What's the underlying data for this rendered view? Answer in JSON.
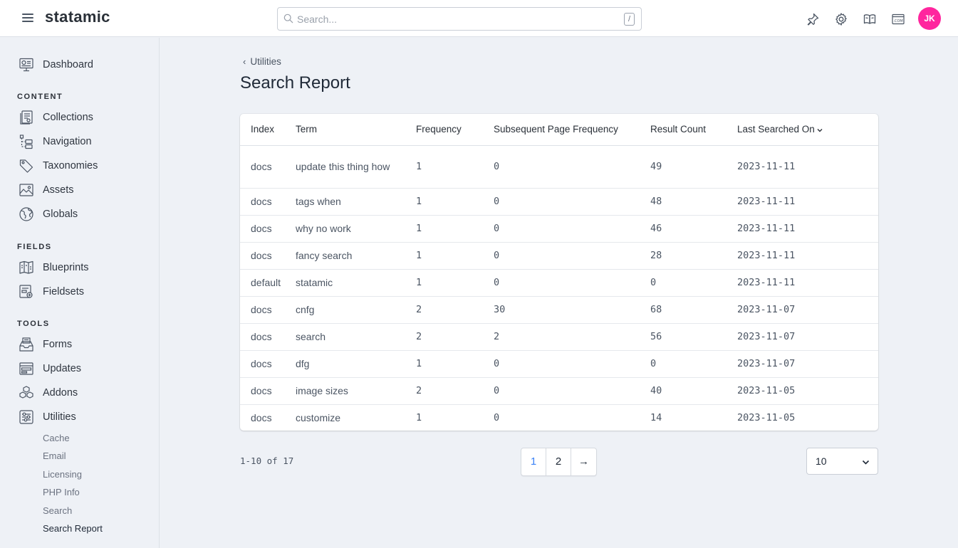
{
  "header": {
    "logo": "statamic",
    "search_placeholder": "Search...",
    "search_shortcut": "/",
    "avatar_initials": "JK",
    "avatar_color": "#ff269e",
    "icons": [
      "pin-icon",
      "gear-icon",
      "book-icon",
      "site-icon"
    ]
  },
  "sidebar": {
    "dashboard": "Dashboard",
    "sections": {
      "content": "CONTENT",
      "fields": "FIELDS",
      "tools": "TOOLS"
    },
    "content_items": [
      "Collections",
      "Navigation",
      "Taxonomies",
      "Assets",
      "Globals"
    ],
    "fields_items": [
      "Blueprints",
      "Fieldsets"
    ],
    "tools_items": [
      "Forms",
      "Updates",
      "Addons",
      "Utilities"
    ],
    "utilities_sub": [
      "Cache",
      "Email",
      "Licensing",
      "PHP Info",
      "Search",
      "Search Report"
    ],
    "active_sub": "Search Report"
  },
  "main": {
    "breadcrumb": "Utilities",
    "title": "Search Report",
    "columns": [
      "Index",
      "Term",
      "Frequency",
      "Subsequent Page Frequency",
      "Result Count",
      "Last Searched On"
    ],
    "sorted_column": "Last Searched On",
    "rows": [
      {
        "index": "docs",
        "term": "update this thing how",
        "frequency": "1",
        "subsequent": "0",
        "results": "49",
        "date": "2023-11-11"
      },
      {
        "index": "docs",
        "term": "tags when",
        "frequency": "1",
        "subsequent": "0",
        "results": "48",
        "date": "2023-11-11"
      },
      {
        "index": "docs",
        "term": "why no work",
        "frequency": "1",
        "subsequent": "0",
        "results": "46",
        "date": "2023-11-11"
      },
      {
        "index": "docs",
        "term": "fancy search",
        "frequency": "1",
        "subsequent": "0",
        "results": "28",
        "date": "2023-11-11"
      },
      {
        "index": "default",
        "term": "statamic",
        "frequency": "1",
        "subsequent": "0",
        "results": "0",
        "date": "2023-11-11"
      },
      {
        "index": "docs",
        "term": "cnfg",
        "frequency": "2",
        "subsequent": "30",
        "results": "68",
        "date": "2023-11-07"
      },
      {
        "index": "docs",
        "term": "search",
        "frequency": "2",
        "subsequent": "2",
        "results": "56",
        "date": "2023-11-07"
      },
      {
        "index": "docs",
        "term": "dfg",
        "frequency": "1",
        "subsequent": "0",
        "results": "0",
        "date": "2023-11-07"
      },
      {
        "index": "docs",
        "term": "image sizes",
        "frequency": "2",
        "subsequent": "0",
        "results": "40",
        "date": "2023-11-05"
      },
      {
        "index": "docs",
        "term": "customize",
        "frequency": "1",
        "subsequent": "0",
        "results": "14",
        "date": "2023-11-05"
      }
    ]
  },
  "pagination": {
    "summary": "1-10 of 17",
    "pages": [
      "1",
      "2"
    ],
    "current_page": "1",
    "next": "→",
    "per_page": "10"
  }
}
